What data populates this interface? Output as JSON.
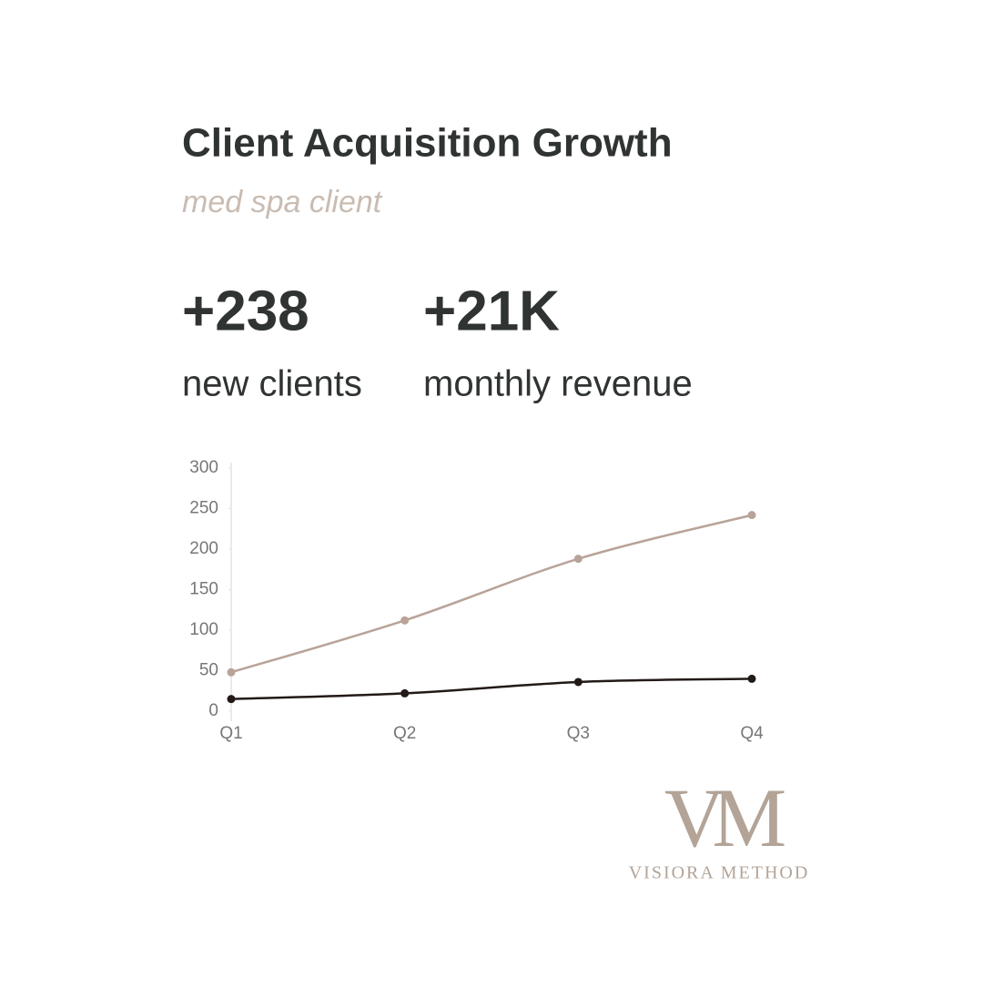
{
  "chart_data": {
    "type": "line",
    "title": "Client Acquisition Growth",
    "subtitle": "med spa client",
    "categories": [
      "Q1",
      "Q2",
      "Q3",
      "Q4"
    ],
    "series": [
      {
        "color": "#b8a398",
        "values": [
          48,
          112,
          188,
          242
        ]
      },
      {
        "color": "#231a17",
        "values": [
          15,
          22,
          36,
          40
        ]
      }
    ],
    "ylim": [
      0,
      300
    ],
    "yticks": [
      0,
      50,
      100,
      150,
      200,
      250,
      300
    ],
    "grid": false
  },
  "stats": [
    {
      "value": "+238",
      "label": "new clients"
    },
    {
      "value": "+21K",
      "label": "monthly revenue"
    }
  ],
  "logo": {
    "mark": "VM",
    "text": "VISIORA METHOD"
  }
}
